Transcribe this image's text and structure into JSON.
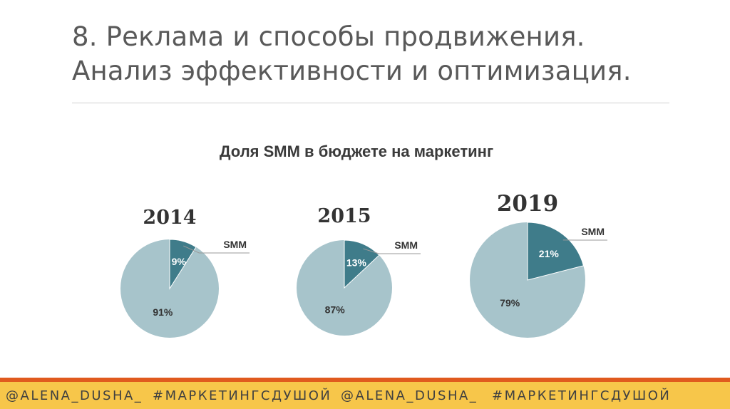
{
  "slide": {
    "title_line1": "8. Реклама и способы продвижения.",
    "title_line2": "Анализ эффективности и оптимизация."
  },
  "colors": {
    "smm_slice": "#3f7c8a",
    "other_slice": "#a7c4cb",
    "footer_bg": "#f7c64a",
    "footer_accent": "#e05a1e"
  },
  "chart_data": {
    "type": "pie",
    "title": "Доля SMM в бюджете на маркетинг",
    "pies": [
      {
        "year": "2014",
        "smm_label": "SMM",
        "slices": [
          {
            "label": "SMM",
            "value": 9,
            "display": "9%"
          },
          {
            "label": "",
            "value": 91,
            "display": "91%"
          }
        ]
      },
      {
        "year": "2015",
        "smm_label": "SMM",
        "slices": [
          {
            "label": "SMM",
            "value": 13,
            "display": "13%"
          },
          {
            "label": "",
            "value": 87,
            "display": "87%"
          }
        ]
      },
      {
        "year": "2019",
        "smm_label": "SMM",
        "slices": [
          {
            "label": "SMM",
            "value": 21,
            "display": "21%"
          },
          {
            "label": "",
            "value": 79,
            "display": "79%"
          }
        ]
      }
    ]
  },
  "footer": {
    "items": [
      "@ALENA_DUSHA_",
      "#МАРКЕТИНГСДУШОЙ",
      "@ALENA_DUSHA_",
      "#МАРКЕТИНГСДУШОЙ"
    ]
  }
}
